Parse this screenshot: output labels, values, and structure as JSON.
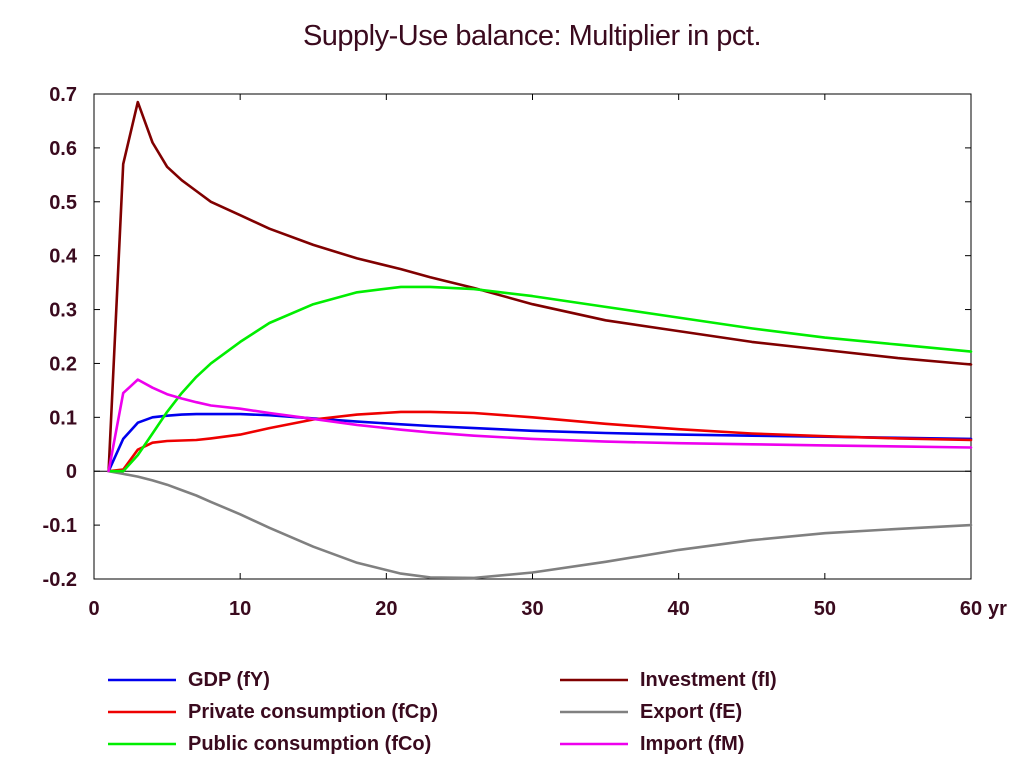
{
  "chart_data": {
    "type": "line",
    "title": "Supply-Use balance: Multiplier in pct.",
    "xlabel": "",
    "ylabel": "",
    "x_unit_label": "yr",
    "xlim": [
      0,
      60
    ],
    "ylim": [
      -0.2,
      0.7
    ],
    "xticks": [
      "0",
      "10",
      "20",
      "30",
      "40",
      "50",
      "60"
    ],
    "yticks": [
      "0.7",
      "0.6",
      "0.5",
      "0.4",
      "0.3",
      "0.2",
      "0.1",
      "0",
      "-0.1",
      "-0.2"
    ],
    "grid": false,
    "zero_line": true,
    "legend_position": "bottom",
    "x": [
      1,
      2,
      3,
      4,
      5,
      6,
      7,
      8,
      10,
      12,
      15,
      18,
      21,
      23,
      26,
      30,
      35,
      40,
      45,
      50,
      55,
      60
    ],
    "series": [
      {
        "name": "GDP (fY)",
        "color": "#0000ee",
        "values": [
          0,
          0.06,
          0.09,
          0.1,
          0.103,
          0.105,
          0.106,
          0.106,
          0.106,
          0.104,
          0.098,
          0.092,
          0.087,
          0.084,
          0.08,
          0.075,
          0.071,
          0.068,
          0.066,
          0.064,
          0.062,
          0.06
        ]
      },
      {
        "name": "Investment (fI)",
        "color": "#800000",
        "values": [
          0,
          0.57,
          0.685,
          0.61,
          0.565,
          0.54,
          0.52,
          0.5,
          0.475,
          0.45,
          0.42,
          0.395,
          0.375,
          0.36,
          0.34,
          0.31,
          0.28,
          0.26,
          0.24,
          0.225,
          0.21,
          0.198
        ]
      },
      {
        "name": "Private consumption (fCp)",
        "color": "#ee0000",
        "values": [
          0,
          0.003,
          0.04,
          0.053,
          0.056,
          0.057,
          0.058,
          0.061,
          0.068,
          0.08,
          0.096,
          0.105,
          0.11,
          0.11,
          0.108,
          0.1,
          0.088,
          0.078,
          0.07,
          0.065,
          0.061,
          0.058
        ]
      },
      {
        "name": "Export (fE)",
        "color": "#808080",
        "values": [
          0,
          -0.005,
          -0.01,
          -0.017,
          -0.025,
          -0.035,
          -0.045,
          -0.057,
          -0.08,
          -0.105,
          -0.14,
          -0.17,
          -0.19,
          -0.197,
          -0.198,
          -0.188,
          -0.168,
          -0.146,
          -0.128,
          -0.115,
          -0.107,
          -0.1
        ]
      },
      {
        "name": "Public consumption (fCo)",
        "color": "#00ee00",
        "values": [
          0,
          0.0,
          0.03,
          0.07,
          0.11,
          0.145,
          0.175,
          0.2,
          0.24,
          0.275,
          0.31,
          0.332,
          0.342,
          0.342,
          0.338,
          0.325,
          0.305,
          0.285,
          0.265,
          0.248,
          0.235,
          0.222
        ]
      },
      {
        "name": "Import (fM)",
        "color": "#ee00ee",
        "values": [
          0,
          0.145,
          0.17,
          0.155,
          0.143,
          0.135,
          0.128,
          0.122,
          0.116,
          0.108,
          0.097,
          0.086,
          0.077,
          0.072,
          0.066,
          0.06,
          0.055,
          0.052,
          0.05,
          0.048,
          0.046,
          0.044
        ]
      }
    ]
  }
}
